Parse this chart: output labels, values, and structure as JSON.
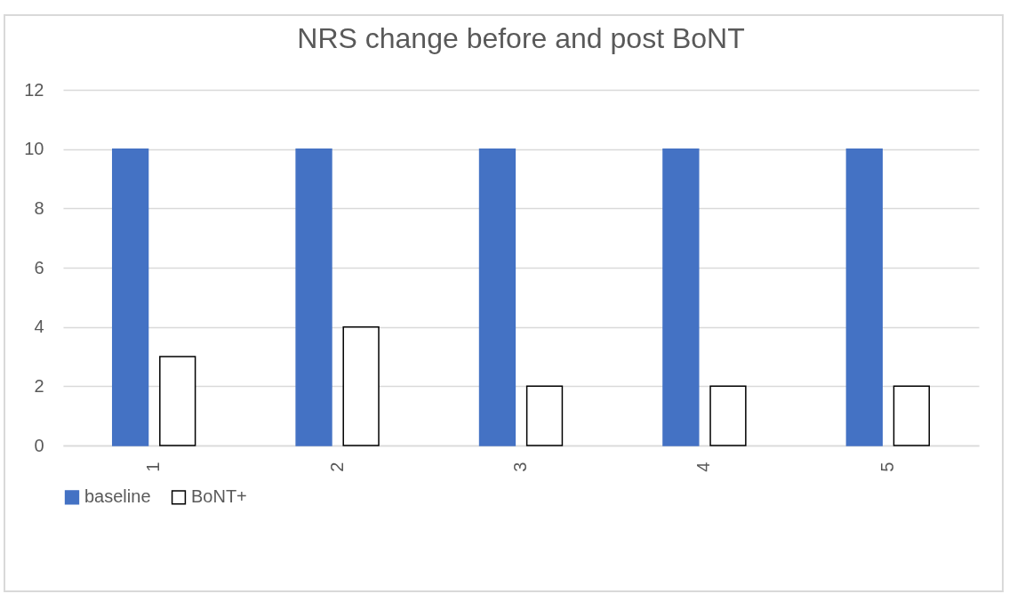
{
  "chart_data": {
    "type": "bar",
    "title": "NRS change before and post BoNT",
    "categories": [
      "1",
      "2",
      "3",
      "4",
      "5"
    ],
    "series": [
      {
        "name": "baseline",
        "color": "#4472c4",
        "values": [
          10,
          10,
          10,
          10,
          10
        ]
      },
      {
        "name": "BoNT+",
        "color": "#ffffff",
        "values": [
          3,
          4,
          2,
          2,
          2
        ]
      }
    ],
    "ylim": [
      0,
      12
    ],
    "yticks": [
      0,
      2,
      4,
      6,
      8,
      10,
      12
    ],
    "grid": "y",
    "legend": "bottom"
  }
}
